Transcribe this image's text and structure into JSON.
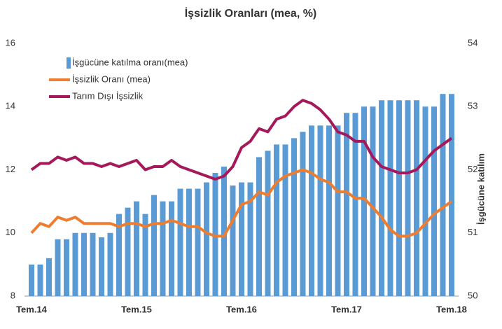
{
  "chart_data": {
    "type": "bar-line",
    "title": "İşsizlik Oranları (mea, %)",
    "y2_label": "İşgücüne katılım",
    "categories": [
      "Tem.14",
      null,
      null,
      null,
      null,
      null,
      null,
      null,
      null,
      null,
      null,
      null,
      "Tem.15",
      null,
      null,
      null,
      null,
      null,
      null,
      null,
      null,
      null,
      null,
      null,
      "Tem.16",
      null,
      null,
      null,
      null,
      null,
      null,
      null,
      null,
      null,
      null,
      null,
      "Tem.17",
      null,
      null,
      null,
      null,
      null,
      null,
      null,
      null,
      null,
      null,
      null,
      "Tem.18"
    ],
    "ylim": [
      8,
      16
    ],
    "yticks": [
      8,
      10,
      12,
      14,
      16
    ],
    "y2lim": [
      50,
      54
    ],
    "y2ticks": [
      50,
      51,
      52,
      53,
      54
    ],
    "series": [
      {
        "name": "İşgücüne katılma oranı(mea)",
        "type": "bar",
        "axis": "y2",
        "color": "#5b9bd5",
        "values": [
          50.5,
          50.5,
          50.6,
          50.9,
          50.9,
          51.0,
          51.0,
          51.0,
          50.93,
          51.0,
          51.3,
          51.4,
          51.5,
          51.3,
          51.6,
          51.5,
          51.5,
          51.7,
          51.7,
          51.7,
          51.8,
          51.95,
          52.05,
          51.75,
          51.8,
          51.8,
          52.2,
          52.3,
          52.4,
          52.4,
          52.5,
          52.6,
          52.7,
          52.7,
          52.7,
          52.7,
          52.9,
          52.9,
          53.0,
          53.0,
          53.1,
          53.1,
          53.1,
          53.1,
          53.1,
          53.0,
          53.0,
          53.2,
          53.2
        ]
      },
      {
        "name": "İşsizlik Oranı (mea)",
        "type": "line",
        "color": "#ed7d31",
        "values": [
          10.0,
          10.3,
          10.2,
          10.5,
          10.4,
          10.5,
          10.3,
          10.3,
          10.3,
          10.3,
          10.2,
          10.3,
          10.3,
          10.2,
          10.3,
          10.3,
          10.4,
          10.3,
          10.2,
          10.2,
          10.0,
          9.9,
          9.9,
          10.4,
          10.9,
          11.0,
          11.3,
          11.2,
          11.6,
          11.8,
          11.9,
          12.0,
          11.9,
          11.7,
          11.6,
          11.3,
          11.3,
          11.1,
          11.1,
          10.8,
          10.5,
          10.1,
          9.9,
          9.9,
          10.0,
          10.3,
          10.6,
          10.8,
          11.0
        ]
      },
      {
        "name": "Tarım Dışı İşsizlik",
        "type": "line",
        "color": "#a5185a",
        "values": [
          12.0,
          12.2,
          12.2,
          12.4,
          12.3,
          12.4,
          12.2,
          12.2,
          12.1,
          12.2,
          12.1,
          12.2,
          12.3,
          12.0,
          12.1,
          12.1,
          12.3,
          12.1,
          12.0,
          11.9,
          11.8,
          11.7,
          11.8,
          12.1,
          12.7,
          12.9,
          13.3,
          13.2,
          13.6,
          13.7,
          14.0,
          14.2,
          14.1,
          13.9,
          13.6,
          13.2,
          13.1,
          12.9,
          12.9,
          12.4,
          12.1,
          12.0,
          11.9,
          11.9,
          12.0,
          12.3,
          12.6,
          12.8,
          13.0
        ]
      }
    ]
  }
}
